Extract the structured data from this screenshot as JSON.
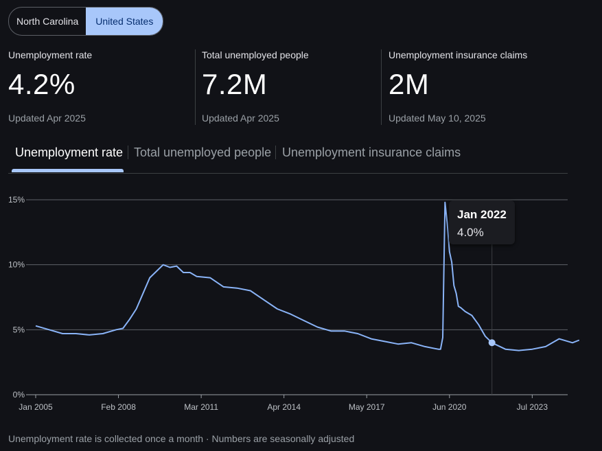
{
  "region_toggle": {
    "options": [
      "North Carolina",
      "United States"
    ],
    "selected": "United States"
  },
  "stats": [
    {
      "label": "Unemployment rate",
      "value": "4.2%",
      "updated": "Updated Apr 2025"
    },
    {
      "label": "Total unemployed people",
      "value": "7.2M",
      "updated": "Updated Apr 2025"
    },
    {
      "label": "Unemployment insurance claims",
      "value": "2M",
      "updated": "Updated May 10, 2025"
    }
  ],
  "tabs": [
    "Unemployment rate",
    "Total unemployed people",
    "Unemployment insurance claims"
  ],
  "active_tab": "Unemployment rate",
  "tooltip": {
    "date": "Jan 2022",
    "value": "4.0%"
  },
  "footnote": "Unemployment rate is collected once a month · Numbers are seasonally adjusted",
  "colors": {
    "line": "#8ab4f8",
    "accent": "#a8c7fa",
    "background": "#111217",
    "grid": "#5f6368"
  },
  "chart_data": {
    "type": "line",
    "title": "",
    "xlabel": "",
    "ylabel": "",
    "ylim": [
      0,
      15
    ],
    "yticks": [
      "0%",
      "5%",
      "10%",
      "15%"
    ],
    "x_tick_labels": [
      "Jan 2005",
      "Feb 2008",
      "Mar 2011",
      "Apr 2014",
      "May 2017",
      "Jun 2020",
      "Jul 2023"
    ],
    "grid": true,
    "highlight": {
      "x": "2022-01",
      "y": 4.0
    },
    "series": [
      {
        "x": [
          "2005-01",
          "2005-07",
          "2006-01",
          "2006-07",
          "2007-01",
          "2007-07",
          "2008-01",
          "2008-04",
          "2008-07",
          "2008-10",
          "2009-01",
          "2009-04",
          "2009-07",
          "2009-10",
          "2010-01",
          "2010-04",
          "2010-07",
          "2010-10",
          "2011-01",
          "2011-07",
          "2012-01",
          "2012-07",
          "2013-01",
          "2013-07",
          "2014-01",
          "2014-07",
          "2015-01",
          "2015-07",
          "2016-01",
          "2016-07",
          "2017-01",
          "2017-07",
          "2018-01",
          "2018-07",
          "2019-01",
          "2019-07",
          "2020-01",
          "2020-02",
          "2020-03",
          "2020-04",
          "2020-05",
          "2020-06",
          "2020-07",
          "2020-08",
          "2020-09",
          "2020-10",
          "2020-11",
          "2021-01",
          "2021-04",
          "2021-07",
          "2021-10",
          "2022-01",
          "2022-07",
          "2023-01",
          "2023-07",
          "2024-01",
          "2024-07",
          "2025-01",
          "2025-04"
        ],
        "y": [
          5.3,
          5.0,
          4.7,
          4.7,
          4.6,
          4.7,
          5.0,
          5.1,
          5.8,
          6.6,
          7.8,
          9.0,
          9.5,
          10.0,
          9.8,
          9.9,
          9.4,
          9.4,
          9.1,
          9.0,
          8.3,
          8.2,
          8.0,
          7.3,
          6.6,
          6.2,
          5.7,
          5.2,
          4.9,
          4.9,
          4.7,
          4.3,
          4.1,
          3.9,
          4.0,
          3.7,
          3.5,
          3.5,
          4.4,
          14.8,
          13.2,
          11.0,
          10.2,
          8.4,
          7.8,
          6.8,
          6.7,
          6.4,
          6.1,
          5.4,
          4.5,
          4.0,
          3.5,
          3.4,
          3.5,
          3.7,
          4.3,
          4.0,
          4.2
        ]
      }
    ]
  }
}
